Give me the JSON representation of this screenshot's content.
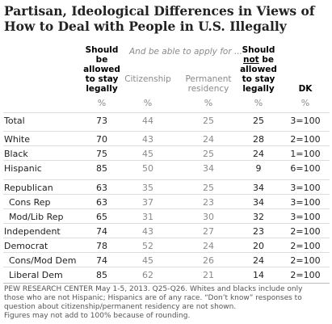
{
  "title": [
    "Partisan, Ideological Differences in Views of",
    "How to Deal with People in U.S. Illegally"
  ],
  "subheading": "And be able to apply for ...",
  "columns": [
    {
      "parts": [
        "Should be allowed to stay legally"
      ]
    },
    {
      "parts": [
        "Citizenship"
      ]
    },
    {
      "parts": [
        "Permanent residency"
      ]
    },
    {
      "parts": [
        "Should",
        "not",
        "be allowed to stay legally"
      ]
    },
    {
      "parts": [
        "DK"
      ]
    }
  ],
  "units": [
    "%",
    "%",
    "%",
    "%",
    "%"
  ],
  "rows": [
    {
      "label": "Total",
      "values": [
        73,
        44,
        25,
        25,
        "3=100"
      ]
    },
    {
      "label": "White",
      "values": [
        70,
        43,
        24,
        28,
        "2=100"
      ]
    },
    {
      "label": "Black",
      "values": [
        75,
        45,
        25,
        24,
        "1=100"
      ]
    },
    {
      "label": "Hispanic",
      "values": [
        85,
        50,
        34,
        9,
        "6=100"
      ]
    },
    {
      "label": "Republican",
      "values": [
        63,
        35,
        25,
        34,
        "3=100"
      ]
    },
    {
      "label": "Cons Rep",
      "indent": true,
      "values": [
        63,
        37,
        23,
        34,
        "3=100"
      ]
    },
    {
      "label": "Mod/Lib Rep",
      "indent": true,
      "values": [
        65,
        31,
        30,
        32,
        "3=100"
      ]
    },
    {
      "label": "Independent",
      "values": [
        74,
        43,
        27,
        23,
        "2=100"
      ]
    },
    {
      "label": "Democrat",
      "values": [
        78,
        52,
        24,
        20,
        "2=100"
      ]
    },
    {
      "label": "Cons/Mod Dem",
      "indent": true,
      "values": [
        74,
        45,
        26,
        24,
        "2=100"
      ]
    },
    {
      "label": "Liberal Dem",
      "indent": true,
      "values": [
        85,
        62,
        21,
        14,
        "2=100"
      ]
    }
  ],
  "footnote": [
    "PEW RESEARCH CENTER May 1-5, 2013. Q25-Q26. Whites and blacks include only",
    "those who are not Hispanic; Hispanics are of any race. “Don’t know” responses to",
    "question about citizenship/permanent residency are not shown.",
    "Figures may not add to 100% because of rounding."
  ]
}
